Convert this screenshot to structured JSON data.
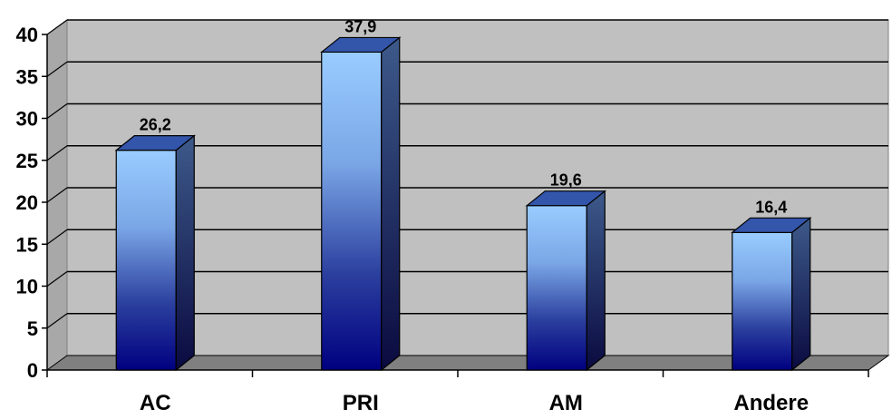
{
  "chart_data": {
    "type": "bar",
    "categories": [
      "AC",
      "PRI",
      "AM",
      "Andere"
    ],
    "values": [
      26.2,
      37.9,
      19.6,
      16.4
    ],
    "value_labels": [
      "26,2",
      "37,9",
      "19,6",
      "16,4"
    ],
    "y_ticks": [
      "0",
      "5",
      "10",
      "15",
      "20",
      "25",
      "30",
      "35",
      "40"
    ],
    "ylim": [
      0,
      40
    ],
    "grid": true,
    "style": "3d-column",
    "colors": {
      "wall": "#c0c0c0",
      "floor": "#808080",
      "bar_top": "#99ccff",
      "bar_bottom": "#000080",
      "bar_side": "#333366",
      "bar_cap": "#3355aa"
    }
  }
}
